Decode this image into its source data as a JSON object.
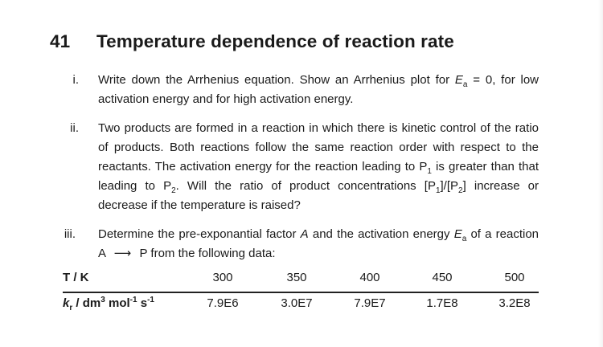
{
  "section": {
    "number": "41",
    "title": "Temperature dependence of reaction rate"
  },
  "questions": [
    {
      "marker": "i.",
      "text_a": "Write down the Arrhenius equation. Show an Arrhenius plot for ",
      "var": "E",
      "sub": "a",
      "text_b": " = 0, for low activation energy and for high activation energy."
    },
    {
      "marker": "ii.",
      "text_a": "Two products are formed in a reaction in which there is kinetic control of the ratio of products. Both reactions follow the same reaction order with respect to the reactants. The activation energy for the reaction leading to P",
      "sub1": "1",
      "text_b": " is greater than that leading to P",
      "sub2": "2",
      "text_c": ". Will the ratio of product concentrations [P",
      "sub3": "1",
      "text_d": "]/[P",
      "sub4": "2",
      "text_e": "] increase or decrease if the temperature is raised?"
    },
    {
      "marker": "iii.",
      "text_a": "Determine the pre-exponantial factor ",
      "var_a": "A",
      "text_b": " and the activation energy ",
      "var_e": "E",
      "sub": "a",
      "text_c": " of a reaction A ",
      "arrow": "⟶",
      "text_d": " P from the following data:"
    }
  ],
  "table": {
    "header_label": "T / K",
    "rate_label_k": "k",
    "rate_label_sub": "r",
    "rate_label_rest": " / dm",
    "rate_label_sup1": "3",
    "rate_label_mol": " mol",
    "rate_label_sup2": "-1",
    "rate_label_s": " s",
    "rate_label_sup3": "-1",
    "temperatures": [
      "300",
      "350",
      "400",
      "450",
      "500"
    ],
    "rate_constants": [
      "7.9E6",
      "3.0E7",
      "7.9E7",
      "1.7E8",
      "3.2E8"
    ]
  }
}
